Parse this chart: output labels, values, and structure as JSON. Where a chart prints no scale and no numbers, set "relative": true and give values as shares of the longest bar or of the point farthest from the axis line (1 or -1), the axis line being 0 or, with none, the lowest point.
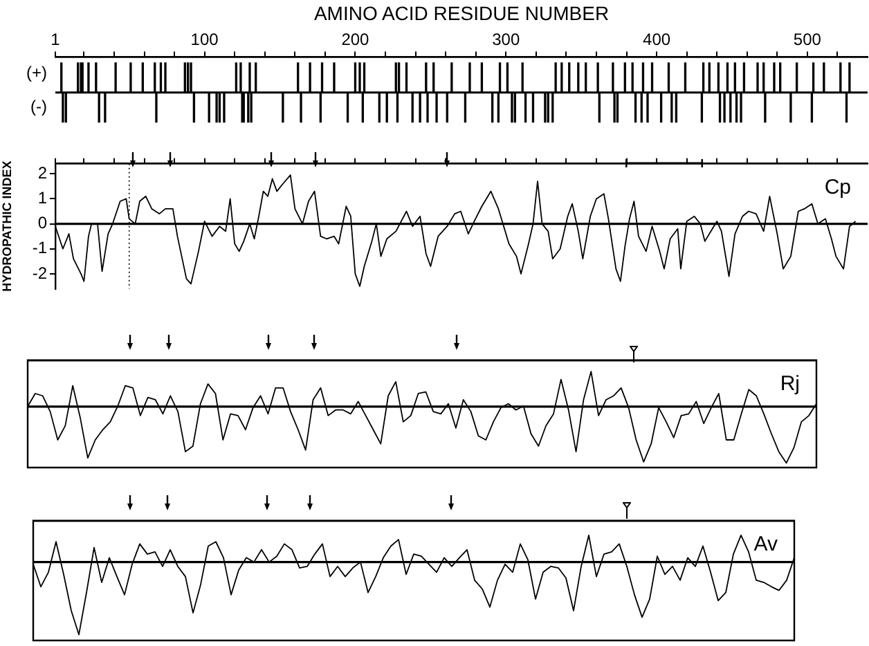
{
  "chart_data": [
    {
      "type": "bar",
      "relative": true,
      "xlabel": "AMINO ACID RESIDUE NUMBER",
      "annotations": [
        "(+)",
        "(-)"
      ],
      "xlim": [
        1,
        540
      ],
      "xticks": [
        1,
        {
          "value": 20,
          "label": null
        },
        {
          "value": 40,
          "label": null
        },
        {
          "value": 60,
          "label": null
        },
        {
          "value": 80,
          "label": null
        },
        100,
        {
          "value": 120,
          "label": null
        },
        {
          "value": 140,
          "label": null
        },
        {
          "value": 160,
          "label": null
        },
        {
          "value": 180,
          "label": null
        },
        200,
        {
          "value": 220,
          "label": null
        },
        {
          "value": 240,
          "label": null
        },
        {
          "value": 260,
          "label": null
        },
        {
          "value": 280,
          "label": null
        },
        300,
        {
          "value": 320,
          "label": null
        },
        {
          "value": 340,
          "label": null
        },
        {
          "value": 360,
          "label": null
        },
        {
          "value": 380,
          "label": null
        },
        400,
        {
          "value": 420,
          "label": null
        },
        {
          "value": 440,
          "label": null
        },
        {
          "value": 460,
          "label": null
        },
        {
          "value": 480,
          "label": null
        },
        500,
        {
          "value": 520,
          "label": null
        }
      ],
      "series": [
        {
          "color": "#000000",
          "x": [
            5,
            6,
            8,
            16,
            18,
            19,
            23,
            28,
            30,
            34,
            41,
            51,
            59,
            67,
            68,
            71,
            74,
            87,
            89,
            91,
            93,
            103,
            108,
            110,
            113,
            121,
            124,
            125,
            126,
            129,
            130,
            131,
            134,
            152,
            162,
            164,
            170,
            177,
            178,
            186,
            195,
            200,
            203,
            205,
            206,
            216,
            221,
            227,
            228,
            229,
            234,
            238,
            243,
            247,
            248,
            252,
            254,
            261,
            264,
            273,
            276,
            284,
            291,
            295,
            296,
            301,
            304,
            306,
            311,
            313,
            318,
            326,
            328,
            331,
            333,
            337,
            342,
            348,
            353,
            361,
            362,
            371,
            372,
            374,
            379,
            384,
            386,
            390,
            391,
            394,
            397,
            403,
            408,
            410,
            413,
            419,
            430,
            431,
            435,
            441,
            442,
            445,
            447,
            449,
            452,
            453,
            456,
            458,
            467,
            471,
            472,
            478,
            482,
            489,
            493,
            503,
            504,
            511,
            522,
            526,
            528
          ],
          "values": [
            1,
            -1,
            -1,
            1,
            1,
            1,
            1,
            1,
            -1,
            -1,
            1,
            1,
            1,
            1,
            -1,
            1,
            1,
            1,
            1,
            1,
            -1,
            -1,
            -1,
            -1,
            -1,
            1,
            1,
            -1,
            -1,
            -1,
            1,
            -1,
            1,
            -1,
            1,
            -1,
            1,
            -1,
            1,
            1,
            -1,
            1,
            1,
            -1,
            1,
            -1,
            -1,
            1,
            -1,
            1,
            1,
            -1,
            -1,
            1,
            -1,
            1,
            -1,
            -1,
            1,
            -1,
            1,
            1,
            -1,
            -1,
            1,
            1,
            -1,
            -1,
            1,
            -1,
            -1,
            -1,
            -1,
            -1,
            1,
            1,
            1,
            1,
            1,
            1,
            -1,
            1,
            -1,
            -1,
            1,
            1,
            -1,
            -1,
            1,
            -1,
            1,
            -1,
            1,
            -1,
            -1,
            1,
            -1,
            1,
            1,
            1,
            -1,
            -1,
            1,
            -1,
            1,
            -1,
            -1,
            1,
            1,
            1,
            -1,
            1,
            1,
            -1,
            1,
            -1,
            1,
            1,
            1,
            -1,
            1
          ]
        }
      ],
      "legend": false,
      "grid": false
    },
    {
      "type": "line",
      "ylabel": "HYDROPATHIC INDEX",
      "annotations": [
        "Cp"
      ],
      "xlim": [
        1,
        540
      ],
      "xticks": [
        1,
        {
          "value": 20,
          "label": null
        },
        {
          "value": 40,
          "label": null
        },
        {
          "value": 60,
          "label": null
        },
        {
          "value": 80,
          "label": null
        },
        100,
        {
          "value": 120,
          "label": null
        },
        {
          "value": 140,
          "label": null
        },
        {
          "value": 160,
          "label": null
        },
        {
          "value": 180,
          "label": null
        },
        200,
        {
          "value": 220,
          "label": null
        },
        {
          "value": 240,
          "label": null
        },
        {
          "value": 260,
          "label": null
        },
        {
          "value": 280,
          "label": null
        },
        300,
        {
          "value": 320,
          "label": null
        },
        {
          "value": 340,
          "label": null
        },
        {
          "value": 360,
          "label": null
        },
        {
          "value": 380,
          "label": null
        },
        400,
        {
          "value": 420,
          "label": null
        },
        {
          "value": 440,
          "label": null
        },
        {
          "value": 460,
          "label": null
        },
        {
          "value": 480,
          "label": null
        },
        500,
        {
          "value": 520,
          "label": null
        }
      ],
      "ylim": [
        -2.6,
        2.4
      ],
      "yticks": [
        -2,
        -1,
        0,
        1,
        2
      ],
      "tick_labels": "y",
      "ref_lines": [
        {
          "axis": "y",
          "value": 0
        },
        {
          "axis": "x",
          "value": 50,
          "line_style": "dotted"
        }
      ],
      "series": [
        {
          "color": "#000000",
          "x": [
            1,
            6,
            10,
            13,
            18,
            20,
            23,
            25,
            29,
            32,
            36,
            39,
            44,
            48,
            50,
            54,
            57,
            61,
            65,
            70,
            74,
            79,
            82,
            88,
            91,
            96,
            100,
            105,
            110,
            114,
            117,
            120,
            123,
            126,
            130,
            133,
            136,
            139,
            142,
            145,
            148,
            152,
            157,
            160,
            165,
            169,
            173,
            177,
            181,
            186,
            189,
            194,
            197,
            200,
            203,
            206,
            211,
            214,
            217,
            221,
            227,
            234,
            238,
            243,
            247,
            250,
            255,
            261,
            266,
            270,
            275,
            279,
            284,
            287,
            290,
            295,
            298,
            302,
            307,
            310,
            315,
            318,
            321,
            324,
            328,
            331,
            336,
            341,
            344,
            348,
            351,
            356,
            360,
            365,
            368,
            373,
            376,
            379,
            382,
            385,
            388,
            393,
            397,
            402,
            405,
            409,
            414,
            416,
            420,
            425,
            429,
            432,
            437,
            440,
            443,
            448,
            452,
            457,
            461,
            466,
            471,
            475,
            480,
            484,
            489,
            494,
            498,
            503,
            507,
            512,
            516,
            519,
            524,
            528,
            532
          ],
          "values": [
            -0.1,
            -1.0,
            -0.4,
            -1.4,
            -2.0,
            -2.3,
            -0.5,
            0,
            0,
            -1.9,
            -0.4,
            0,
            0.9,
            1.0,
            0.2,
            0,
            0.9,
            1.1,
            0.6,
            0.4,
            0.6,
            0.6,
            -0.5,
            -2.2,
            -2.4,
            -1.1,
            0.1,
            -0.5,
            -0.1,
            -0.3,
            1.0,
            -0.8,
            -1.1,
            -0.7,
            0,
            -0.6,
            0.3,
            1.3,
            1.1,
            1.8,
            1.3,
            1.6,
            1.95,
            0.6,
            0,
            0.9,
            1.3,
            -0.5,
            -0.6,
            -0.5,
            -0.8,
            0.7,
            0.3,
            -2.0,
            -2.5,
            -1.7,
            -0.7,
            0,
            -1.3,
            -0.6,
            -0.3,
            0.5,
            -0.1,
            0.3,
            -1.2,
            -1.7,
            -0.5,
            -0.1,
            0.4,
            0.5,
            -0.4,
            0.1,
            0.7,
            1.0,
            1.3,
            0.6,
            0,
            -0.8,
            -1.3,
            -2.0,
            -0.8,
            0,
            1.7,
            0,
            -0.3,
            -1.4,
            -1.0,
            0.3,
            0.8,
            -0.3,
            -1.4,
            0.3,
            1.0,
            1.2,
            0.2,
            -1.8,
            -2.3,
            -0.9,
            0.2,
            0.9,
            -0.5,
            -1.1,
            -0.1,
            -1.1,
            -1.8,
            -0.6,
            -0.2,
            -1.8,
            0.1,
            0.3,
            0,
            -0.7,
            -0.2,
            0.1,
            -0.3,
            -2.1,
            -0.4,
            0.3,
            0.5,
            0.4,
            -0.3,
            1.1,
            -0.4,
            -1.8,
            -1.3,
            0.5,
            0.6,
            0.8,
            0,
            0.2,
            -0.6,
            -1.3,
            -1.8,
            -0.1,
            0.1
          ]
        }
      ],
      "legend": false,
      "grid": false
    },
    {
      "type": "line",
      "relative": true,
      "annotations": [
        "Rj"
      ],
      "categories": [
        null,
        null,
        null,
        null,
        null,
        null,
        null,
        null,
        null,
        null,
        null,
        null,
        null,
        null,
        null,
        null,
        null,
        null,
        null,
        null,
        null,
        null,
        null,
        null,
        null,
        null,
        null,
        null,
        null,
        null,
        null,
        null,
        null,
        null,
        null,
        null,
        null,
        null,
        null,
        null,
        null,
        null,
        null,
        null,
        null,
        null,
        null,
        null,
        null,
        null,
        null,
        null,
        null,
        null,
        null,
        null,
        null,
        null,
        null,
        null,
        null,
        null,
        null,
        null,
        null,
        null,
        null,
        null,
        null,
        null,
        null,
        null,
        null,
        null,
        null,
        null,
        null,
        null,
        null,
        null,
        null,
        null,
        null,
        null,
        null,
        null,
        null,
        null,
        null,
        null,
        null,
        null,
        null,
        null,
        null,
        null,
        null,
        null,
        null,
        null,
        null,
        null,
        null,
        null,
        null,
        null
      ],
      "series": [
        {
          "color": "#000000",
          "values": [
            0,
            0.23,
            0.19,
            -0.09,
            -0.59,
            -0.34,
            0.37,
            -0.2,
            -0.91,
            -0.59,
            -0.41,
            -0.27,
            0.01,
            0.37,
            0.33,
            -0.16,
            0.16,
            0.12,
            -0.13,
            0.19,
            -0.09,
            -0.8,
            -0.7,
            0.05,
            0.4,
            0.23,
            -0.59,
            -0.13,
            -0.16,
            -0.41,
            -0.02,
            0.19,
            -0.13,
            0.33,
            0.33,
            -0.09,
            -0.41,
            -0.77,
            0.12,
            0.33,
            -0.16,
            -0.06,
            -0.06,
            -0.13,
            0.09,
            -0.16,
            -0.41,
            -0.66,
            0.19,
            0.44,
            -0.27,
            -0.16,
            0.23,
            0.26,
            -0.09,
            -0.13,
            0.05,
            -0.38,
            0.12,
            -0.09,
            -0.52,
            -0.59,
            -0.27,
            -0.02,
            0.05,
            -0.06,
            0.01,
            -0.48,
            -0.7,
            -0.34,
            -0.13,
            0.48,
            -0.06,
            -0.8,
            0.12,
            0.62,
            -0.16,
            0.12,
            0.19,
            0.33,
            -0.02,
            -0.59,
            -0.98,
            -0.66,
            -0.02,
            -0.27,
            -0.55,
            -0.16,
            -0.13,
            0.09,
            -0.3,
            -0.02,
            0.23,
            -0.59,
            -0.59,
            -0.13,
            0.3,
            0.19,
            -0.13,
            -0.48,
            -0.8,
            -1,
            -0.73,
            -0.27,
            -0.16,
            0.05
          ]
        }
      ],
      "legend": false,
      "grid": false
    },
    {
      "type": "line",
      "relative": true,
      "annotations": [
        "Av"
      ],
      "categories": [
        null,
        null,
        null,
        null,
        null,
        null,
        null,
        null,
        null,
        null,
        null,
        null,
        null,
        null,
        null,
        null,
        null,
        null,
        null,
        null,
        null,
        null,
        null,
        null,
        null,
        null,
        null,
        null,
        null,
        null,
        null,
        null,
        null,
        null,
        null,
        null,
        null,
        null,
        null,
        null,
        null,
        null,
        null,
        null,
        null,
        null,
        null,
        null,
        null,
        null,
        null,
        null,
        null,
        null,
        null,
        null,
        null,
        null,
        null,
        null,
        null,
        null,
        null,
        null,
        null,
        null,
        null,
        null,
        null,
        null,
        null,
        null,
        null,
        null,
        null,
        null,
        null,
        null,
        null,
        null,
        null,
        null,
        null,
        null,
        null,
        null,
        null,
        null,
        null,
        null,
        null,
        null,
        null,
        null,
        null,
        null,
        null,
        null,
        null,
        null,
        null
      ],
      "series": [
        {
          "color": "#000000",
          "values": [
            -0.03,
            -0.34,
            -0.14,
            0.28,
            -0.17,
            -0.67,
            -1,
            -0.42,
            0.2,
            -0.28,
            0.06,
            -0.2,
            -0.45,
            -0.03,
            0.25,
            0.11,
            0.14,
            -0.06,
            0.17,
            -0.06,
            -0.2,
            -0.7,
            -0.31,
            0.22,
            0.28,
            0.06,
            -0.45,
            -0.11,
            0.06,
            0,
            0.17,
            0,
            0.08,
            0.25,
            0.17,
            -0.08,
            -0.06,
            0.11,
            0.25,
            -0.2,
            -0.06,
            -0.2,
            -0.08,
            0,
            -0.42,
            -0.2,
            0.06,
            0.22,
            0.31,
            -0.17,
            0.11,
            0.08,
            -0.03,
            -0.14,
            0.06,
            -0.06,
            0.06,
            0.17,
            -0.25,
            -0.37,
            -0.62,
            -0.25,
            -0.03,
            -0.14,
            0.25,
            0.03,
            -0.51,
            -0.14,
            -0.06,
            -0.08,
            -0.22,
            -0.67,
            -0.06,
            0.37,
            -0.2,
            0.11,
            0.14,
            0.25,
            -0.06,
            -0.45,
            -0.76,
            -0.51,
            0.08,
            -0.17,
            -0.06,
            -0.25,
            0.06,
            -0.06,
            0.22,
            -0.14,
            -0.53,
            -0.42,
            0.11,
            0.37,
            0.14,
            -0.25,
            -0.28,
            -0.34,
            -0.39,
            -0.25,
            0.06
          ]
        }
      ],
      "legend": false,
      "grid": false
    }
  ]
}
